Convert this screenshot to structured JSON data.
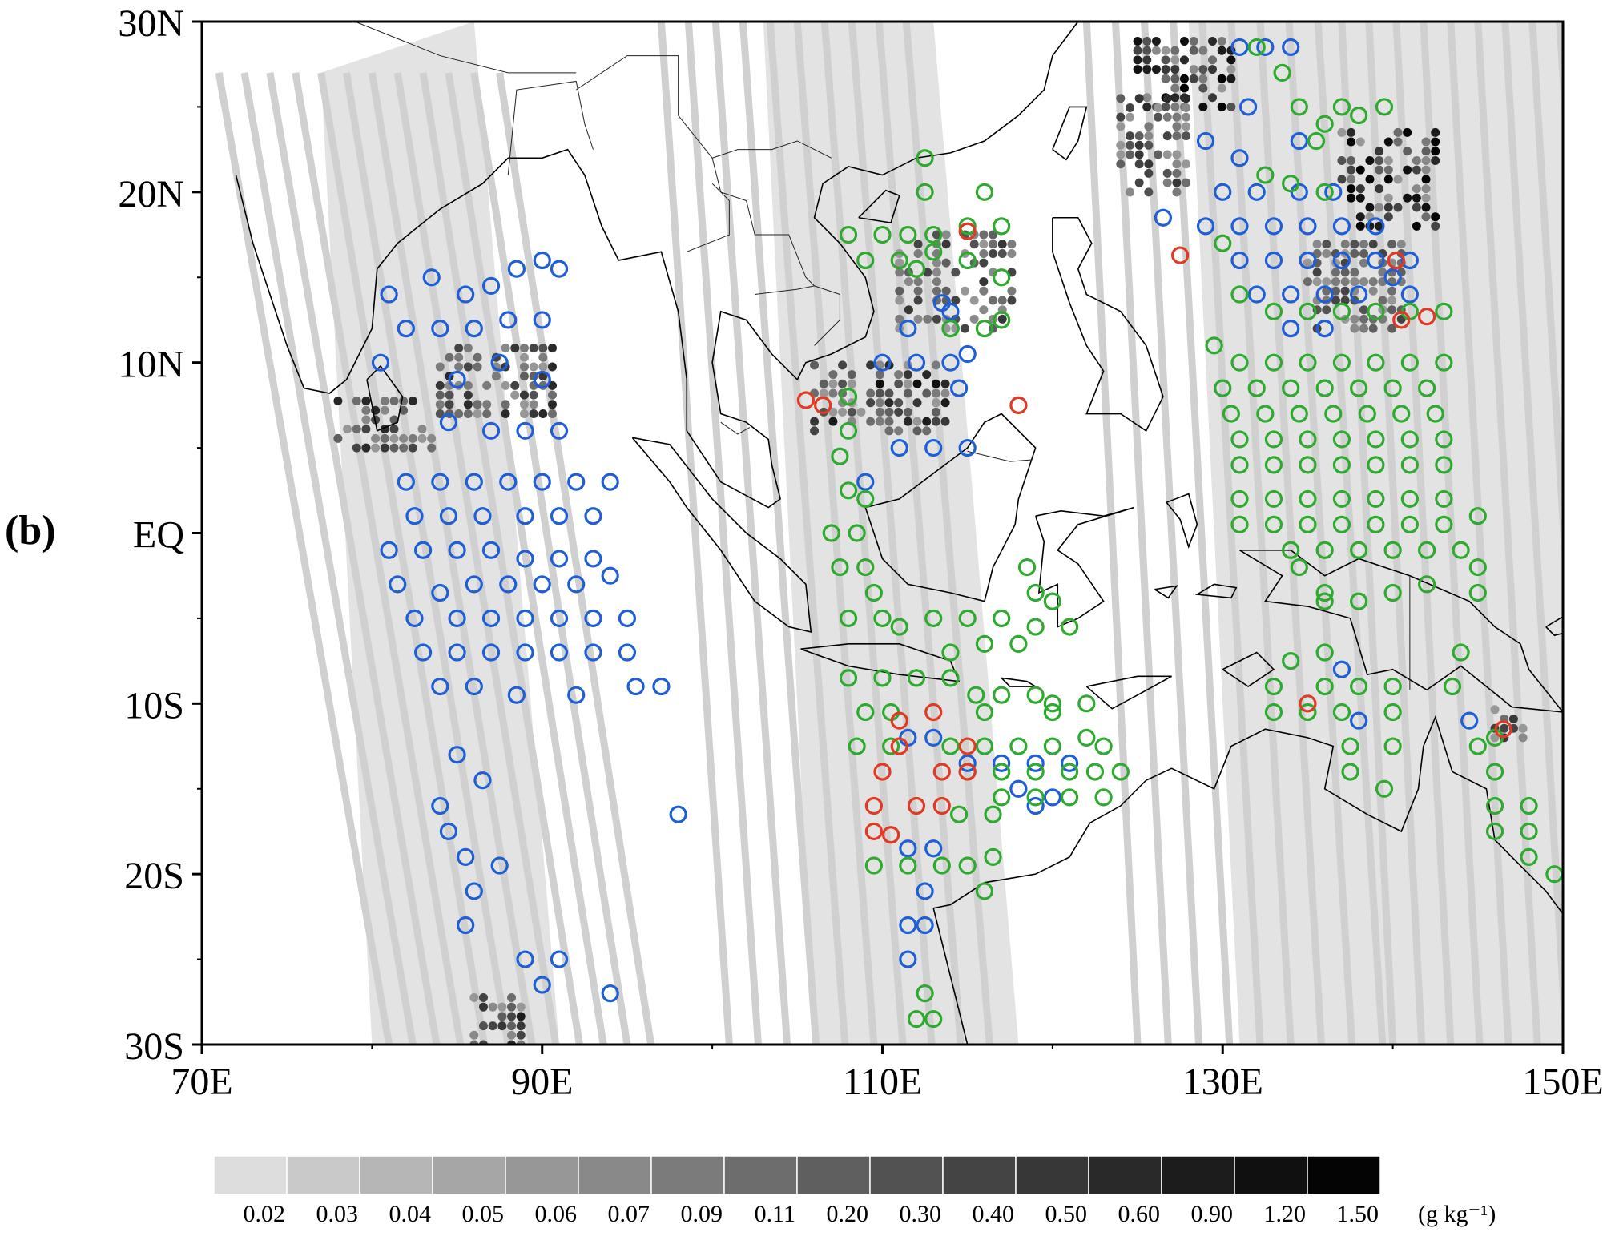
{
  "panel_label": "(b)",
  "map": {
    "lat_labels": [
      "30N",
      "20N",
      "10N",
      "EQ",
      "10S",
      "20S",
      "30S"
    ],
    "lon_labels": [
      "70E",
      "90E",
      "110E",
      "130E",
      "150E"
    ],
    "lon_range": [
      70,
      150
    ],
    "lat_range": [
      -30,
      30
    ],
    "land_color": "#000000",
    "swath_color": "#dedede"
  },
  "colorbar": {
    "labels": [
      "0.02",
      "0.03",
      "0.04",
      "0.05",
      "0.06",
      "0.07",
      "0.09",
      "0.11",
      "0.20",
      "0.30",
      "0.40",
      "0.50",
      "0.60",
      "0.90",
      "1.20",
      "1.50"
    ],
    "unit": "(g kg⁻¹)",
    "colors": [
      "#dddddd",
      "#c9c9c9",
      "#b6b6b6",
      "#a6a6a6",
      "#979797",
      "#898989",
      "#7b7b7b",
      "#6d6d6d",
      "#5f5f5f",
      "#525252",
      "#444444",
      "#373737",
      "#292929",
      "#1c1c1c",
      "#101010",
      "#040404"
    ]
  },
  "markers": {
    "colors": {
      "blue": "#1f5fd6",
      "green": "#2eaa2e",
      "red": "#e03a24"
    },
    "blue": [
      [
        81,
        14
      ],
      [
        83.5,
        15
      ],
      [
        85.5,
        14
      ],
      [
        87,
        14.5
      ],
      [
        88.5,
        15.5
      ],
      [
        90,
        16
      ],
      [
        91,
        15.5
      ],
      [
        82,
        12
      ],
      [
        84,
        12
      ],
      [
        86,
        12
      ],
      [
        88,
        12.5
      ],
      [
        90,
        12.5
      ],
      [
        80.5,
        10
      ],
      [
        85,
        9
      ],
      [
        87.5,
        10
      ],
      [
        90,
        9
      ],
      [
        84.5,
        6.5
      ],
      [
        87,
        6
      ],
      [
        89,
        6
      ],
      [
        91,
        6
      ],
      [
        82,
        3
      ],
      [
        84,
        3
      ],
      [
        86,
        3
      ],
      [
        88,
        3
      ],
      [
        90,
        3
      ],
      [
        92,
        3
      ],
      [
        94,
        3
      ],
      [
        82.5,
        1
      ],
      [
        84.5,
        1
      ],
      [
        86.5,
        1
      ],
      [
        89,
        1
      ],
      [
        91,
        1
      ],
      [
        93,
        1
      ],
      [
        81,
        -1
      ],
      [
        83,
        -1
      ],
      [
        85,
        -1
      ],
      [
        87,
        -1
      ],
      [
        89,
        -1.5
      ],
      [
        91,
        -1.5
      ],
      [
        93,
        -1.5
      ],
      [
        81.5,
        -3
      ],
      [
        84,
        -3.5
      ],
      [
        86,
        -3
      ],
      [
        88,
        -3
      ],
      [
        90,
        -3
      ],
      [
        92,
        -3
      ],
      [
        94,
        -2.5
      ],
      [
        82.5,
        -5
      ],
      [
        85,
        -5
      ],
      [
        87,
        -5
      ],
      [
        89,
        -5
      ],
      [
        91,
        -5
      ],
      [
        93,
        -5
      ],
      [
        95,
        -5
      ],
      [
        83,
        -7
      ],
      [
        85,
        -7
      ],
      [
        87,
        -7
      ],
      [
        89,
        -7
      ],
      [
        91,
        -7
      ],
      [
        93,
        -7
      ],
      [
        95,
        -7
      ],
      [
        84,
        -9
      ],
      [
        86,
        -9
      ],
      [
        88.5,
        -9.5
      ],
      [
        92,
        -9.5
      ],
      [
        95.5,
        -9
      ],
      [
        97,
        -9
      ],
      [
        85,
        -13
      ],
      [
        86.5,
        -14.5
      ],
      [
        84,
        -16
      ],
      [
        84.5,
        -17.5
      ],
      [
        85.5,
        -19
      ],
      [
        87.5,
        -19.5
      ],
      [
        86,
        -21
      ],
      [
        85.5,
        -23
      ],
      [
        89,
        -25
      ],
      [
        91,
        -25
      ],
      [
        90,
        -26.5
      ],
      [
        94,
        -27
      ],
      [
        98,
        -16.5
      ],
      [
        113.5,
        13.5
      ],
      [
        111.5,
        12
      ],
      [
        114,
        13
      ],
      [
        110,
        10
      ],
      [
        112,
        10
      ],
      [
        114,
        10
      ],
      [
        115,
        10.5
      ],
      [
        114.5,
        8.5
      ],
      [
        111,
        5
      ],
      [
        113,
        5
      ],
      [
        115,
        5
      ],
      [
        109,
        3
      ],
      [
        111.5,
        -12
      ],
      [
        113,
        -12
      ],
      [
        115,
        -13.5
      ],
      [
        117,
        -13.5
      ],
      [
        119,
        -13.5
      ],
      [
        121,
        -13.5
      ],
      [
        118,
        -15
      ],
      [
        120,
        -15.5
      ],
      [
        111.5,
        -18.5
      ],
      [
        113,
        -18.5
      ],
      [
        112.5,
        -21
      ],
      [
        111.5,
        -23
      ],
      [
        112.5,
        -23
      ],
      [
        111.5,
        -25
      ],
      [
        119,
        -16
      ],
      [
        131,
        28.5
      ],
      [
        132.5,
        28.5
      ],
      [
        134,
        28.5
      ],
      [
        131.5,
        25
      ],
      [
        134.5,
        23
      ],
      [
        129,
        23
      ],
      [
        131,
        22
      ],
      [
        130,
        20
      ],
      [
        132,
        20
      ],
      [
        134.5,
        20
      ],
      [
        136.5,
        20
      ],
      [
        129,
        18
      ],
      [
        131,
        18
      ],
      [
        133,
        18
      ],
      [
        135,
        18
      ],
      [
        137,
        18
      ],
      [
        139,
        18
      ],
      [
        126.5,
        18.5
      ],
      [
        131,
        16
      ],
      [
        133,
        16
      ],
      [
        135,
        16
      ],
      [
        137,
        16
      ],
      [
        139,
        16
      ],
      [
        141,
        16
      ],
      [
        140,
        15
      ],
      [
        141,
        14
      ],
      [
        132,
        14
      ],
      [
        134,
        14
      ],
      [
        136,
        14
      ],
      [
        138,
        14
      ],
      [
        134,
        12
      ],
      [
        136,
        12
      ],
      [
        137,
        -8
      ],
      [
        138,
        -11
      ],
      [
        144.5,
        -11
      ]
    ],
    "green": [
      [
        108,
        17.5
      ],
      [
        110,
        17.5
      ],
      [
        111.5,
        17.5
      ],
      [
        113,
        17.5
      ],
      [
        115,
        18
      ],
      [
        109,
        16
      ],
      [
        111,
        16
      ],
      [
        112,
        15.5
      ],
      [
        113,
        16.5
      ],
      [
        115,
        16
      ],
      [
        112.5,
        22
      ],
      [
        112.5,
        20
      ],
      [
        116,
        20
      ],
      [
        117,
        18
      ],
      [
        117,
        15
      ],
      [
        114,
        12
      ],
      [
        116,
        12
      ],
      [
        117,
        12.5
      ],
      [
        108,
        8
      ],
      [
        108,
        6
      ],
      [
        107.5,
        4.5
      ],
      [
        108,
        2.5
      ],
      [
        109,
        2
      ],
      [
        108.5,
        0
      ],
      [
        107,
        0
      ],
      [
        107.5,
        -2
      ],
      [
        109,
        -2
      ],
      [
        109.5,
        -3.5
      ],
      [
        108,
        -5
      ],
      [
        110,
        -5
      ],
      [
        111,
        -5.5
      ],
      [
        113,
        -5
      ],
      [
        115,
        -5
      ],
      [
        117,
        -5
      ],
      [
        119,
        -5.5
      ],
      [
        121,
        -5.5
      ],
      [
        114,
        -7
      ],
      [
        116,
        -6.5
      ],
      [
        118,
        -6.5
      ],
      [
        119,
        -3.5
      ],
      [
        120,
        -4
      ],
      [
        118.5,
        -2
      ],
      [
        108,
        -8.5
      ],
      [
        110,
        -8.5
      ],
      [
        112,
        -8.5
      ],
      [
        114,
        -8.5
      ],
      [
        115.5,
        -9.5
      ],
      [
        117,
        -9.5
      ],
      [
        119,
        -9.5
      ],
      [
        120,
        -10
      ],
      [
        122,
        -10
      ],
      [
        109,
        -10.5
      ],
      [
        110.5,
        -10.5
      ],
      [
        116,
        -10.5
      ],
      [
        120,
        -10.5
      ],
      [
        108.5,
        -12.5
      ],
      [
        110.5,
        -12.5
      ],
      [
        114,
        -12.5
      ],
      [
        116,
        -12.5
      ],
      [
        118,
        -12.5
      ],
      [
        120,
        -12.5
      ],
      [
        122,
        -12
      ],
      [
        123,
        -12.5
      ],
      [
        115,
        -14
      ],
      [
        117,
        -14
      ],
      [
        119,
        -14
      ],
      [
        121,
        -14
      ],
      [
        122.5,
        -14
      ],
      [
        124,
        -14
      ],
      [
        117,
        -15.5
      ],
      [
        119,
        -15.5
      ],
      [
        121,
        -15.5
      ],
      [
        123,
        -15.5
      ],
      [
        114.5,
        -16.5
      ],
      [
        116.5,
        -16.5
      ],
      [
        109.5,
        -19.5
      ],
      [
        111.5,
        -19.5
      ],
      [
        113.5,
        -19.5
      ],
      [
        115,
        -19.5
      ],
      [
        116.5,
        -19
      ],
      [
        112.5,
        -27
      ],
      [
        112,
        -28.5
      ],
      [
        113,
        -28.5
      ],
      [
        116,
        -21
      ],
      [
        132,
        28.5
      ],
      [
        133.5,
        27
      ],
      [
        134.5,
        25
      ],
      [
        135.5,
        23
      ],
      [
        136,
        24
      ],
      [
        137,
        25
      ],
      [
        138,
        24.5
      ],
      [
        139.5,
        25
      ],
      [
        132.5,
        21
      ],
      [
        134,
        20.5
      ],
      [
        136,
        20
      ],
      [
        130,
        17
      ],
      [
        131,
        14
      ],
      [
        133,
        13
      ],
      [
        135,
        13
      ],
      [
        137,
        13
      ],
      [
        139,
        13
      ],
      [
        141,
        13
      ],
      [
        143,
        13
      ],
      [
        129.5,
        11
      ],
      [
        131,
        10
      ],
      [
        133,
        10
      ],
      [
        135,
        10
      ],
      [
        137,
        10
      ],
      [
        139,
        10
      ],
      [
        141,
        10
      ],
      [
        143,
        10
      ],
      [
        130,
        8.5
      ],
      [
        132,
        8.5
      ],
      [
        134,
        8.5
      ],
      [
        136,
        8.5
      ],
      [
        138,
        8.5
      ],
      [
        140,
        8.5
      ],
      [
        142,
        8.5
      ],
      [
        130.5,
        7
      ],
      [
        132.5,
        7
      ],
      [
        134.5,
        7
      ],
      [
        136.5,
        7
      ],
      [
        138.5,
        7
      ],
      [
        140.5,
        7
      ],
      [
        142.5,
        7
      ],
      [
        131,
        5.5
      ],
      [
        133,
        5.5
      ],
      [
        135,
        5.5
      ],
      [
        137,
        5.5
      ],
      [
        139,
        5.5
      ],
      [
        141,
        5.5
      ],
      [
        143,
        5.5
      ],
      [
        131,
        4
      ],
      [
        133,
        4
      ],
      [
        135,
        4
      ],
      [
        137,
        4
      ],
      [
        139,
        4
      ],
      [
        141,
        4
      ],
      [
        143,
        4
      ],
      [
        131,
        2
      ],
      [
        133,
        2
      ],
      [
        135,
        2
      ],
      [
        137,
        2
      ],
      [
        139,
        2
      ],
      [
        141,
        2
      ],
      [
        143,
        2
      ],
      [
        131,
        0.5
      ],
      [
        133,
        0.5
      ],
      [
        135,
        0.5
      ],
      [
        137,
        0.5
      ],
      [
        139,
        0.5
      ],
      [
        141,
        0.5
      ],
      [
        143,
        0.5
      ],
      [
        145,
        1
      ],
      [
        134,
        -1
      ],
      [
        136,
        -1
      ],
      [
        138,
        -1
      ],
      [
        140,
        -1
      ],
      [
        142,
        -1
      ],
      [
        144,
        -1
      ],
      [
        145,
        -2
      ],
      [
        134.5,
        -2
      ],
      [
        136,
        -4
      ],
      [
        138,
        -4
      ],
      [
        140,
        -3.5
      ],
      [
        142,
        -3
      ],
      [
        145,
        -3.5
      ],
      [
        144,
        -7
      ],
      [
        134,
        -7.5
      ],
      [
        136,
        -7
      ],
      [
        133,
        -9
      ],
      [
        136,
        -9
      ],
      [
        138,
        -9
      ],
      [
        140,
        -9
      ],
      [
        143.5,
        -9
      ],
      [
        133,
        -10.5
      ],
      [
        135,
        -10.5
      ],
      [
        137,
        -10.5
      ],
      [
        140,
        -10.5
      ],
      [
        137.5,
        -12.5
      ],
      [
        140,
        -12.5
      ],
      [
        145,
        -12.5
      ],
      [
        146,
        -12
      ],
      [
        137.5,
        -14
      ],
      [
        139.5,
        -15
      ],
      [
        146,
        -14
      ],
      [
        146,
        -16
      ],
      [
        148,
        -16
      ],
      [
        146,
        -17.5
      ],
      [
        148,
        -17.5
      ],
      [
        148,
        -19
      ],
      [
        149.5,
        -20
      ],
      [
        136,
        -3.5
      ]
    ],
    "red": [
      [
        115,
        17.7
      ],
      [
        127.5,
        16.3
      ],
      [
        140.2,
        16
      ],
      [
        140.5,
        12.5
      ],
      [
        142,
        12.7
      ],
      [
        105.5,
        7.8
      ],
      [
        106.5,
        7.5
      ],
      [
        118,
        7.5
      ],
      [
        111,
        -11
      ],
      [
        113,
        -10.5
      ],
      [
        115,
        -12.5
      ],
      [
        111,
        -12.5
      ],
      [
        110,
        -14
      ],
      [
        113.5,
        -14
      ],
      [
        115,
        -14
      ],
      [
        109.5,
        -16
      ],
      [
        112,
        -16
      ],
      [
        113.5,
        -16
      ],
      [
        109.5,
        -17.5
      ],
      [
        110.5,
        -17.7
      ],
      [
        135,
        -10
      ],
      [
        146.5,
        -11.5
      ]
    ]
  }
}
